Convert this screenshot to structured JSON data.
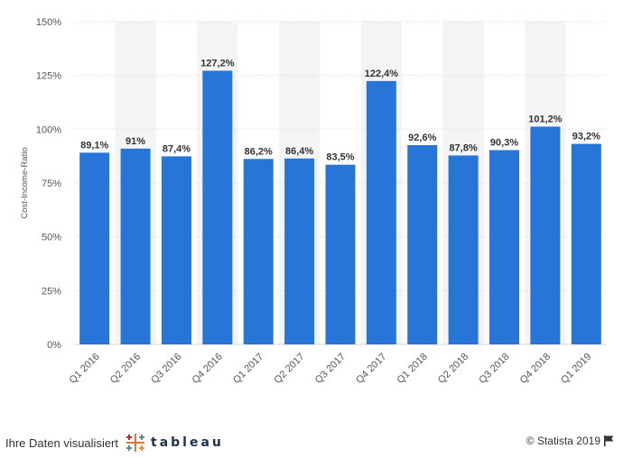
{
  "chart_data": {
    "type": "bar",
    "title": "",
    "xlabel": "",
    "ylabel": "Cost-Income-Ratio",
    "ylim": [
      0,
      150
    ],
    "yticks": [
      "0%",
      "25%",
      "50%",
      "75%",
      "100%",
      "125%",
      "150%"
    ],
    "ytick_values": [
      0,
      25,
      50,
      75,
      100,
      125,
      150
    ],
    "categories": [
      "Q1 2016",
      "Q2 2016",
      "Q3 2016",
      "Q4 2016",
      "Q1 2017",
      "Q2 2017",
      "Q3 2017",
      "Q4 2017",
      "Q1 2018",
      "Q2 2018",
      "Q3 2018",
      "Q4 2018",
      "Q1 2019"
    ],
    "values": [
      89.1,
      91,
      87.4,
      127.2,
      86.2,
      86.4,
      83.5,
      122.4,
      92.6,
      87.8,
      90.3,
      101.2,
      93.2
    ],
    "data_labels": [
      "89,1%",
      "91%",
      "87,4%",
      "127,2%",
      "86,2%",
      "86,4%",
      "83,5%",
      "122,4%",
      "92,6%",
      "87,8%",
      "90,3%",
      "101,2%",
      "93,2%"
    ],
    "grid": true,
    "colors": {
      "bar": "#2875d8",
      "band": "#f4f4f4",
      "grid": "#d9d9d9",
      "text": "#555555",
      "label": "#333333"
    }
  },
  "footer": {
    "left_text": "Ihre Daten visualisiert",
    "brand": "tableau",
    "right_text": "© Statista 2019",
    "flag_icon": "flag-icon"
  }
}
